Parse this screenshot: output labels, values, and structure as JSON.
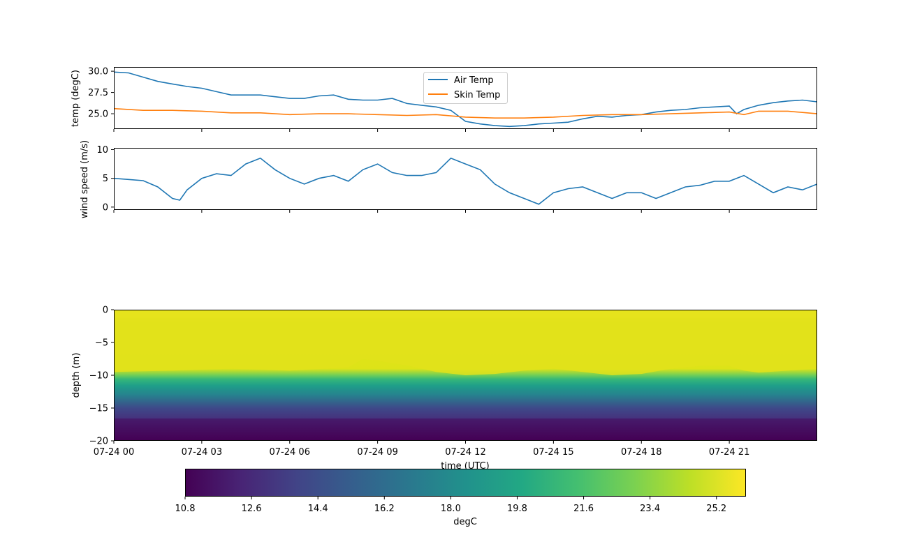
{
  "chart_data": [
    {
      "type": "line",
      "ylabel": "temp (degC)",
      "ylim": [
        23.2,
        30.5
      ],
      "xlim": [
        0,
        24
      ],
      "yticks": [
        "25.0",
        "27.5",
        "30.0"
      ],
      "legend": {
        "placement": "top-center",
        "entries": [
          "Air Temp",
          "Skin Temp"
        ]
      },
      "series": [
        {
          "name": "Air Temp",
          "color": "#1f77b4",
          "x": [
            0,
            0.5,
            1,
            1.5,
            2,
            2.5,
            3,
            3.5,
            4,
            4.5,
            5,
            5.5,
            6,
            6.5,
            7,
            7.5,
            8,
            8.5,
            9,
            9.5,
            10,
            10.5,
            11,
            11.5,
            12,
            12.5,
            13,
            13.5,
            14,
            14.5,
            15,
            15.5,
            16,
            16.5,
            17,
            17.5,
            18,
            18.5,
            19,
            19.5,
            20,
            20.5,
            21,
            21.25,
            21.5,
            22,
            22.5,
            23,
            23.5,
            24
          ],
          "values": [
            29.9,
            29.8,
            29.3,
            28.8,
            28.5,
            28.2,
            28.0,
            27.6,
            27.2,
            27.2,
            27.2,
            27.0,
            26.8,
            26.8,
            27.1,
            27.2,
            26.7,
            26.6,
            26.6,
            26.8,
            26.2,
            26.0,
            25.8,
            25.4,
            24.1,
            23.8,
            23.6,
            23.5,
            23.6,
            23.8,
            23.9,
            24.0,
            24.4,
            24.7,
            24.6,
            24.8,
            24.9,
            25.2,
            25.4,
            25.5,
            25.7,
            25.8,
            25.9,
            25.0,
            25.5,
            26.0,
            26.3,
            26.5,
            26.6,
            26.4
          ]
        },
        {
          "name": "Skin Temp",
          "color": "#ff7f0e",
          "x": [
            0,
            1,
            2,
            3,
            4,
            5,
            6,
            7,
            8,
            9,
            10,
            11,
            12,
            13,
            14,
            15,
            16,
            17,
            18,
            19,
            20,
            21,
            21.5,
            22,
            23,
            24
          ],
          "values": [
            25.6,
            25.4,
            25.4,
            25.3,
            25.1,
            25.1,
            24.9,
            25.0,
            25.0,
            24.9,
            24.8,
            24.9,
            24.6,
            24.5,
            24.5,
            24.6,
            24.8,
            24.9,
            24.9,
            25.0,
            25.1,
            25.2,
            24.9,
            25.3,
            25.3,
            25.0
          ]
        }
      ]
    },
    {
      "type": "line",
      "ylabel": "wind speed (m/s)",
      "ylim": [
        -0.5,
        10.3
      ],
      "xlim": [
        0,
        24
      ],
      "yticks": [
        "0",
        "5",
        "10"
      ],
      "series": [
        {
          "color": "#1f77b4",
          "x": [
            0,
            0.5,
            1,
            1.5,
            2,
            2.25,
            2.5,
            3,
            3.5,
            4,
            4.5,
            5,
            5.5,
            6,
            6.5,
            7,
            7.5,
            8,
            8.5,
            9,
            9.5,
            10,
            10.5,
            11,
            11.5,
            12,
            12.5,
            13,
            13.5,
            14,
            14.5,
            15,
            15.5,
            16,
            16.5,
            17,
            17.5,
            18,
            18.5,
            19,
            19.5,
            20,
            20.5,
            21,
            21.5,
            22,
            22.5,
            23,
            23.5,
            24
          ],
          "values": [
            5.0,
            4.8,
            4.6,
            3.5,
            1.5,
            1.2,
            3.0,
            5.0,
            5.8,
            5.5,
            7.5,
            8.5,
            6.5,
            5.0,
            4.0,
            5.0,
            5.5,
            4.5,
            6.5,
            7.5,
            6.0,
            5.5,
            5.5,
            6.0,
            8.5,
            7.5,
            6.5,
            4.0,
            2.5,
            1.5,
            0.5,
            2.5,
            3.2,
            3.5,
            2.5,
            1.5,
            2.5,
            2.5,
            1.5,
            2.5,
            3.5,
            3.8,
            4.5,
            4.5,
            5.5,
            4.0,
            2.5,
            3.5,
            3.0,
            4.0
          ]
        }
      ]
    },
    {
      "type": "heatmap",
      "ylabel": "depth (m)",
      "xlabel": "time (UTC)",
      "ylim": [
        -20,
        0
      ],
      "yticks": [
        "0",
        "−5",
        "−10",
        "−15",
        "−20"
      ],
      "xticks": [
        "07-24 00",
        "07-24 03",
        "07-24 06",
        "07-24 09",
        "07-24 12",
        "07-24 15",
        "07-24 18",
        "07-24 21"
      ],
      "xtick_hours": [
        0,
        3,
        6,
        9,
        12,
        15,
        18,
        21
      ],
      "thermocline_depth": {
        "x": [
          0,
          2,
          4,
          6,
          8,
          8.5,
          9,
          10,
          11,
          12,
          13,
          14,
          15,
          16,
          17,
          18,
          19,
          20,
          21,
          21.5,
          22,
          23,
          24
        ],
        "y": [
          -9.5,
          -9.3,
          -9.0,
          -9.3,
          -8.8,
          -7.5,
          -7.8,
          -8.5,
          -9.5,
          -10.0,
          -9.8,
          -9.3,
          -9.0,
          -9.5,
          -10.0,
          -9.8,
          -9.0,
          -8.6,
          -8.6,
          -9.3,
          -9.6,
          -9.3,
          -9.0
        ]
      },
      "colorbar": {
        "label": "degC",
        "range": [
          10.8,
          26.0
        ],
        "ticks": [
          "10.8",
          "12.6",
          "14.4",
          "16.2",
          "18.0",
          "19.8",
          "21.6",
          "23.4",
          "25.2"
        ],
        "tick_values": [
          10.8,
          12.6,
          14.4,
          16.2,
          18.0,
          19.8,
          21.6,
          23.4,
          25.2
        ],
        "colormap": "viridis"
      }
    }
  ]
}
